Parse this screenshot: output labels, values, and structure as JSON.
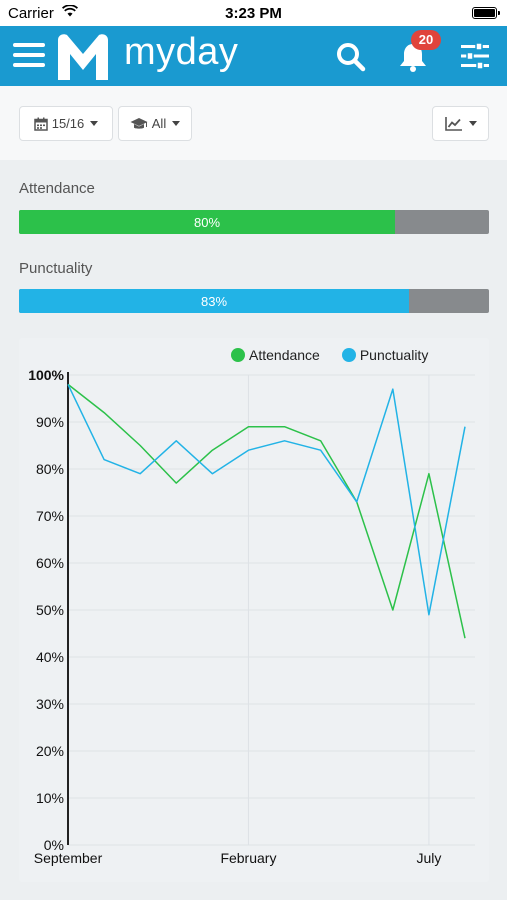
{
  "status_bar": {
    "carrier": "Carrier",
    "time": "3:23 PM"
  },
  "header": {
    "app_name": "myday",
    "notification_count": "20",
    "brand_color": "#1a9ad0"
  },
  "toolbar": {
    "year_label": "15/16",
    "group_label": "All"
  },
  "attendance": {
    "label": "Attendance",
    "value_text": "80%",
    "value": 80,
    "color": "#2cc14a"
  },
  "punctuality": {
    "label": "Punctuality",
    "value_text": "83%",
    "value": 83,
    "color": "#22b3e6"
  },
  "chart_data": {
    "type": "line",
    "x": [
      0,
      1,
      2,
      3,
      4,
      5,
      6,
      7,
      8,
      9,
      10,
      11
    ],
    "xtick_labels": [
      {
        "x": 0,
        "label": "September"
      },
      {
        "x": 5,
        "label": "February"
      },
      {
        "x": 10,
        "label": "July"
      }
    ],
    "ytick_labels": [
      "0%",
      "10%",
      "20%",
      "30%",
      "40%",
      "50%",
      "60%",
      "70%",
      "80%",
      "90%",
      "100%"
    ],
    "ylim": [
      0,
      100
    ],
    "grid": true,
    "legend_position": "top-right",
    "series": [
      {
        "name": "Attendance",
        "color": "#2cc14a",
        "values": [
          98,
          92,
          85,
          77,
          84,
          89,
          89,
          86,
          73,
          50,
          79,
          44
        ]
      },
      {
        "name": "Punctuality",
        "color": "#22b3e6",
        "values": [
          98,
          82,
          79,
          86,
          79,
          84,
          86,
          84,
          73,
          97,
          49,
          89
        ]
      }
    ]
  }
}
